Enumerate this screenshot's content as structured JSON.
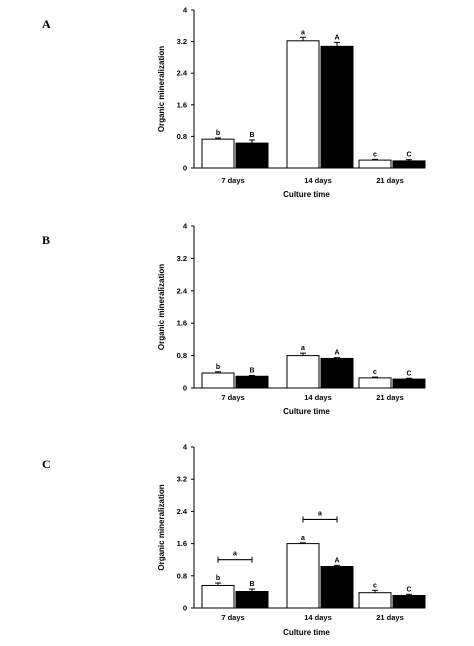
{
  "chart_data": [
    {
      "type": "bar",
      "panel_label": "A",
      "categories": [
        "7 days",
        "14 days",
        "21 days"
      ],
      "series": [
        {
          "color": "#ffffff",
          "values": [
            0.73,
            3.22,
            0.2
          ],
          "errors": [
            0.03,
            0.09,
            0.02
          ],
          "letters": [
            "b",
            "a",
            "c"
          ]
        },
        {
          "color": "#000000",
          "values": [
            0.63,
            3.08,
            0.18
          ],
          "errors": [
            0.08,
            0.1,
            0.03
          ],
          "letters": [
            "B",
            "A",
            "C"
          ]
        }
      ],
      "ylim": [
        0,
        4
      ],
      "yticks": [
        "0",
        "0.8",
        "1.6",
        "2.4",
        "3.2",
        "4"
      ],
      "xlabel": "Culture time",
      "ylabel": "Organic mineralization",
      "brackets": []
    },
    {
      "type": "bar",
      "panel_label": "B",
      "categories": [
        "7 days",
        "14 days",
        "21 days"
      ],
      "series": [
        {
          "color": "#ffffff",
          "values": [
            0.37,
            0.8,
            0.25
          ],
          "errors": [
            0.03,
            0.06,
            0.02
          ],
          "letters": [
            "b",
            "a",
            "c"
          ]
        },
        {
          "color": "#000000",
          "values": [
            0.29,
            0.73,
            0.22
          ],
          "errors": [
            0.02,
            0.02,
            0.02
          ],
          "letters": [
            "B",
            "A",
            "C"
          ]
        }
      ],
      "ylim": [
        0,
        4
      ],
      "yticks": [
        "0",
        "0.8",
        "1.6",
        "2.4",
        "3.2",
        "4"
      ],
      "xlabel": "Culture time",
      "ylabel": "Organic mineralization",
      "brackets": []
    },
    {
      "type": "bar",
      "panel_label": "C",
      "categories": [
        "7 days",
        "14 days",
        "21 days"
      ],
      "series": [
        {
          "color": "#ffffff",
          "values": [
            0.56,
            1.6,
            0.38
          ],
          "errors": [
            0.06,
            0.02,
            0.06
          ],
          "letters": [
            "b",
            "a",
            "c"
          ]
        },
        {
          "color": "#000000",
          "values": [
            0.41,
            1.03,
            0.31
          ],
          "errors": [
            0.06,
            0.03,
            0.03
          ],
          "letters": [
            "B",
            "A",
            "C"
          ]
        }
      ],
      "ylim": [
        0,
        4
      ],
      "yticks": [
        "0",
        "0.8",
        "1.6",
        "2.4",
        "3.2",
        "4"
      ],
      "xlabel": "Culture time",
      "ylabel": "Organic mineralization",
      "brackets": [
        {
          "category_index": 0,
          "label": "a",
          "y": 1.2
        },
        {
          "category_index": 1,
          "label": "a",
          "y": 2.2
        }
      ]
    }
  ]
}
